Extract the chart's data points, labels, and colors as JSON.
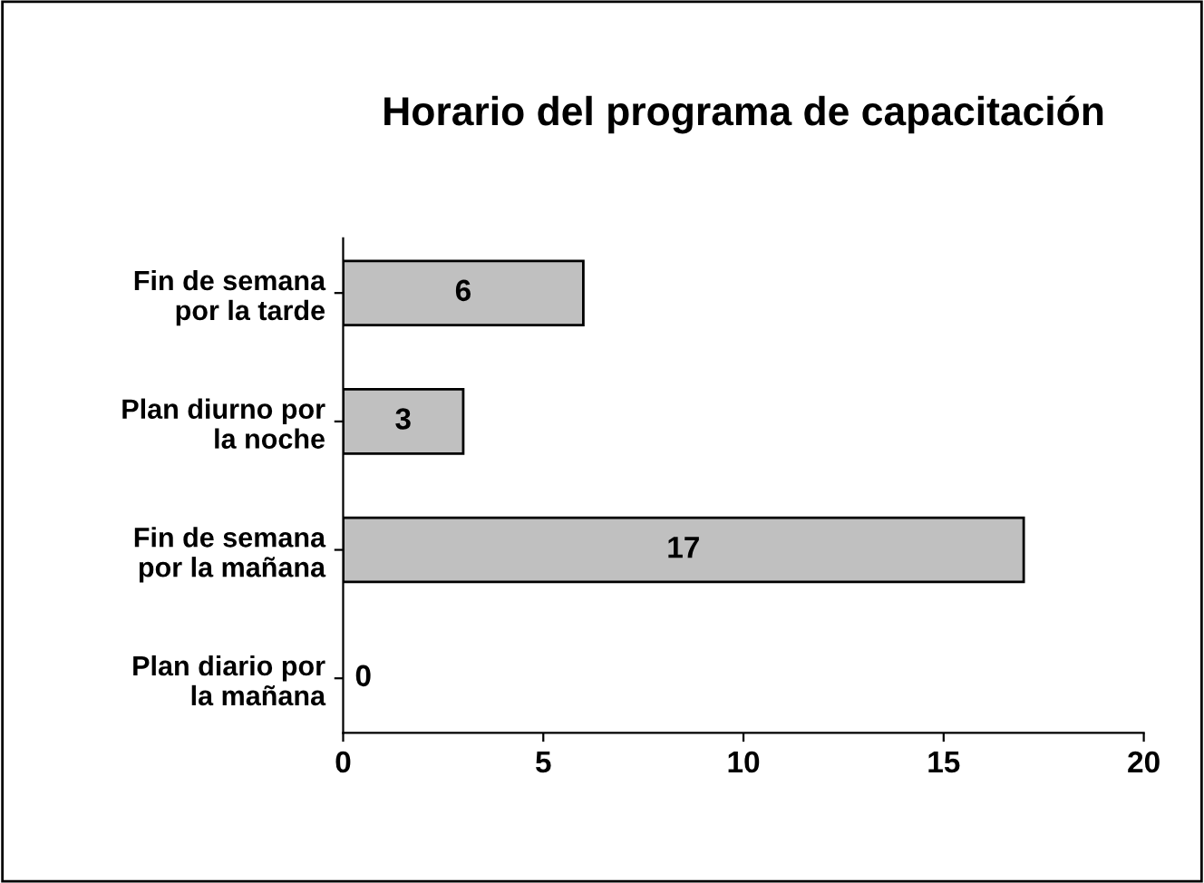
{
  "chart_data": {
    "type": "bar",
    "orientation": "horizontal",
    "title": "Horario del programa de capacitación",
    "categories": [
      "Fin de semana\npor la tarde",
      "Plan diurno por\nla noche",
      "Fin de semana\npor la mañana",
      "Plan diario por\nla mañana"
    ],
    "values": [
      6,
      3,
      17,
      0
    ],
    "color": "#c0c0c0",
    "data_labels": true,
    "xlim": [
      0,
      20
    ],
    "xticks": [
      0,
      5,
      10,
      15,
      20
    ],
    "grid": false,
    "legend": false
  }
}
